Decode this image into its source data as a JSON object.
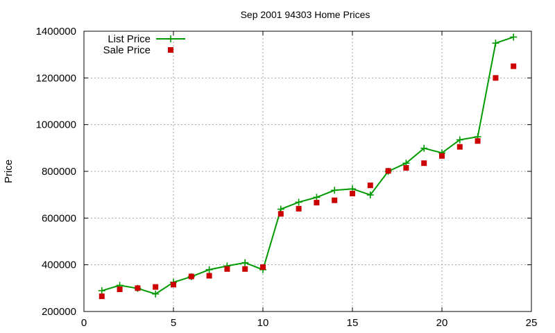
{
  "chart_data": {
    "type": "line",
    "title": "Sep 2001 94303 Home Prices",
    "xlabel": "",
    "ylabel": "Price",
    "xlim": [
      0,
      25
    ],
    "ylim": [
      200000,
      1400000
    ],
    "x_ticks": [
      0,
      5,
      10,
      15,
      20,
      25
    ],
    "y_ticks": [
      200000,
      400000,
      600000,
      800000,
      1000000,
      1200000,
      1400000
    ],
    "x_tick_labels": [
      "0",
      "5",
      "10",
      "15",
      "20",
      "25"
    ],
    "y_tick_labels": [
      "200000",
      "400000",
      "600000",
      "800000",
      "1000000",
      "1200000",
      "1400000"
    ],
    "grid": true,
    "legend_position": "top-left",
    "series": [
      {
        "name": "List Price",
        "style": "line-with-plus-markers",
        "color": "#009900",
        "x": [
          1,
          2,
          3,
          4,
          5,
          6,
          7,
          8,
          9,
          10,
          11,
          12,
          13,
          14,
          15,
          16,
          17,
          18,
          19,
          20,
          21,
          22,
          23,
          24
        ],
        "values": [
          289000,
          312000,
          299000,
          275000,
          325000,
          349000,
          379000,
          395000,
          409000,
          379000,
          638000,
          668000,
          689000,
          719000,
          725000,
          699000,
          800000,
          835000,
          899000,
          879000,
          935000,
          948000,
          1349000,
          1375000
        ]
      },
      {
        "name": "Sale Price",
        "style": "square-markers",
        "color": "#cc0000",
        "x": [
          1,
          2,
          3,
          4,
          5,
          6,
          7,
          8,
          9,
          10,
          11,
          12,
          13,
          14,
          15,
          16,
          17,
          18,
          19,
          20,
          21,
          22,
          23,
          24
        ],
        "values": [
          265000,
          295000,
          300000,
          305000,
          315000,
          350000,
          353000,
          382000,
          382000,
          390000,
          618000,
          640000,
          666000,
          676000,
          705000,
          740000,
          802000,
          815000,
          835000,
          866000,
          905000,
          930000,
          1200000,
          1250000
        ]
      }
    ]
  }
}
